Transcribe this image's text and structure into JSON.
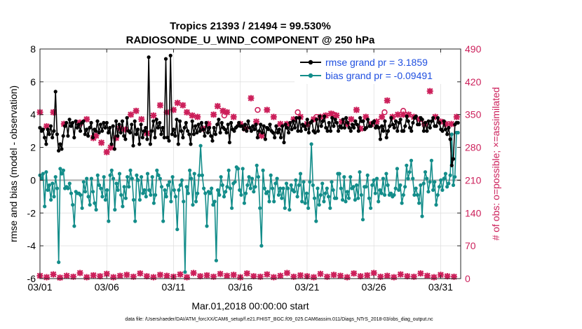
{
  "chart_data": {
    "type": "line",
    "title": "Tropics 21393 / 21494 = 99.530%",
    "subtitle": "RADIOSONDE_U_WIND_COMPONENT @ 250 hPa",
    "xlabel": "Mar.01,2018 00:00:00 start",
    "ylabel_left": "rmse and bias (model - observation)",
    "ylabel_right": "# of obs: o=possible; ×=assimilated",
    "footer": "data file: /Users/raeder/DAI/ATM_forcXX/CAM6_setup/f.e21.FHIST_BGC.f09_025.CAM6assim.011/Diags_NTrS_2018-03/obs_diag_output.nc",
    "xlim": [
      1,
      32.5
    ],
    "ylim_left": [
      -6,
      8
    ],
    "ylim_right": [
      0,
      490
    ],
    "xticks": [
      1,
      6,
      11,
      16,
      21,
      26,
      31
    ],
    "xtick_labels": [
      "03/01",
      "03/06",
      "03/11",
      "03/16",
      "03/21",
      "03/26",
      "03/31"
    ],
    "yticks_left": [
      -6,
      -4,
      -2,
      0,
      2,
      4,
      6,
      8
    ],
    "yticks_right": [
      0,
      70,
      140,
      210,
      280,
      350,
      420,
      490
    ],
    "grid": true,
    "legend_position": "top-right",
    "colors": {
      "rmse": "#000000",
      "bias": "#138d8a",
      "obs": "#cc1f5a",
      "zero_line": "#b0b0b0",
      "legend_text": "#1f4fe0",
      "grid": "#dcdcdc"
    },
    "series": [
      {
        "name": "rmse grand pr = 3.1859",
        "axis": "left",
        "color": "#000000",
        "values": [
          3.2,
          3.0,
          3.1,
          2.6,
          2.2,
          3.1,
          2.8,
          3.3,
          2.6,
          3.0,
          5.4,
          2.8,
          1.8,
          2.2,
          1.9,
          2.7,
          3.3,
          3.5,
          2.7,
          3.7,
          3.3,
          3.5,
          2.6,
          3.6,
          3.2,
          3.4,
          3.0,
          3.5,
          3.6,
          2.8,
          3.1,
          2.7,
          3.2,
          3.5,
          2.6,
          3.1,
          3.0,
          3.6,
          2.9,
          3.4,
          3.0,
          3.5,
          3.2,
          3.5,
          2.9,
          3.2,
          2.2,
          3.3,
          1.9,
          3.6,
          2.7,
          3.4,
          2.9,
          3.6,
          2.7,
          2.5,
          3.8,
          3.0,
          2.9,
          3.4,
          2.1,
          3.6,
          2.8,
          3.1,
          2.2,
          3.4,
          2.6,
          3.0,
          3.2,
          2.5,
          7.5,
          2.2,
          3.0,
          3.6,
          2.6,
          3.7,
          3.2,
          3.5,
          2.8,
          3.2,
          2.6,
          7.4,
          2.6,
          2.4,
          7.6,
          2.8,
          3.1,
          2.7,
          3.7,
          2.2,
          3.6,
          3.0,
          2.6,
          3.2,
          3.5,
          3.0,
          2.8,
          2.2,
          3.6,
          2.8,
          3.3,
          2.9,
          3.4,
          3.0,
          3.5,
          3.1,
          2.7,
          3.5,
          2.9,
          3.2,
          2.7,
          2.4,
          3.2,
          2.8,
          3.4,
          3.7,
          2.9,
          3.5,
          3.2,
          3.1,
          2.9,
          3.4,
          2.3,
          3.5,
          3.1,
          3.0,
          3.2,
          3.3,
          3.5,
          3.3,
          3.3,
          3.1,
          3.4,
          3.0,
          3.6,
          3.2,
          3.0,
          3.3,
          3.1,
          3.4,
          2.6,
          3.0,
          3.4,
          2.9,
          3.3,
          2.5,
          3.2,
          3.1,
          3.4,
          3.0,
          2.9,
          2.6,
          3.3,
          2.9,
          3.1,
          2.6,
          3.3,
          2.3,
          3.4,
          3.2,
          2.9,
          3.5,
          3.1,
          3.6,
          3.2,
          3.8,
          3.0,
          3.8,
          3.0,
          3.4,
          3.3,
          3.1,
          3.7,
          2.9,
          3.5,
          3.6,
          3.0,
          2.9,
          3.7,
          3.0,
          3.9,
          3.3,
          3.6,
          3.9,
          3.2,
          3.0,
          3.5,
          3.0,
          3.8,
          3.3,
          3.7,
          3.5,
          3.0,
          3.3,
          3.2,
          3.7,
          3.2,
          3.8,
          3.5,
          3.2,
          3.0,
          3.4,
          3.2,
          3.6,
          3.4,
          3.0,
          3.8,
          3.6,
          3.6,
          3.1,
          3.2,
          3.7,
          3.3,
          3.3,
          3.5,
          3.6,
          3.2,
          3.3,
          3.2,
          2.5,
          3.3,
          3.0,
          3.6,
          2.6,
          3.0,
          3.3,
          3.8,
          3.4,
          3.2,
          3.6,
          3.0,
          3.5,
          3.7,
          3.0,
          3.0,
          3.3,
          3.9,
          3.6,
          3.2,
          3.0,
          3.5,
          3.8,
          3.9,
          3.4,
          3.4,
          3.8,
          3.7,
          3.0,
          3.5,
          3.0,
          3.6,
          3.2,
          3.6,
          3.8,
          3.3,
          3.3,
          3.8,
          3.5,
          3.1,
          3.0,
          3.6,
          3.1,
          2.8,
          3.2,
          2.5,
          0.9,
          1.3,
          3.4,
          3.5,
          3.5
        ],
        "note": "values resampled uniformly over x range via script"
      },
      {
        "name": "bias grand pr = -0.09491",
        "axis": "left",
        "color": "#138d8a",
        "values": [
          0.3,
          0.1,
          0.4,
          -1.6,
          0.5,
          -0.6,
          -0.3,
          -1.2,
          -0.2,
          -1.0,
          0.2,
          -0.5,
          -5.0,
          0.7,
          0.4,
          0.6,
          -0.5,
          -0.4,
          -0.5,
          -0.2,
          -0.8,
          -1.5,
          -2.8,
          -0.7,
          -0.8,
          -0.8,
          -0.9,
          -1.7,
          -0.1,
          -0.7,
          0.1,
          -1.0,
          -1.5,
          0.1,
          -0.7,
          -1.4,
          -1.8,
          0.3,
          -0.3,
          -0.5,
          -1.0,
          0.2,
          -1.2,
          -0.6,
          -2.5,
          0.3,
          0.6,
          0.1,
          -1.8,
          -0.2,
          -0.6,
          0.4,
          -0.9,
          -1.6,
          -0.4,
          -1.1,
          0.2,
          -0.4,
          0.6,
          0.1,
          -1.2,
          -2.5,
          0.3,
          0.0,
          -1.2,
          0.2,
          -0.8,
          -0.6,
          -1.0,
          0.4,
          -0.6,
          -0.9,
          0.2,
          -1.4,
          -0.9,
          0.6,
          0.3,
          0.1,
          -0.4,
          -2.5,
          -0.6,
          -1.0,
          -0.3,
          -0.1,
          -1.3,
          0.2,
          -0.6,
          -1.0,
          -3.0,
          -0.6,
          -0.3,
          0.0,
          -1.3,
          -5.6,
          -0.4,
          -0.8,
          0.6,
          0.1,
          -1.5,
          0.4,
          -1.3,
          -0.8,
          0.3,
          2.1,
          0.3,
          -0.5,
          -0.8,
          -2.8,
          -0.7,
          -0.8,
          -0.5,
          -1.5,
          -1.3,
          -4.9,
          -0.6,
          -0.9,
          0.2,
          -0.3,
          -1.0,
          -0.7,
          -0.4,
          0.6,
          -0.5,
          -1.7,
          -0.2,
          -0.1,
          0.8,
          0.7,
          -0.6,
          -0.9,
          0.7,
          -1.4,
          -0.8,
          -0.3,
          0.2,
          -0.5,
          0.1,
          -0.7,
          -0.4,
          0.9,
          0.2,
          -1.7,
          -4.0,
          0.6,
          -0.5,
          -0.8,
          -0.7,
          -1.3,
          0.3,
          -0.5,
          -1.3,
          -0.2,
          0.1,
          -0.9,
          -0.5,
          -1.1,
          -0.5,
          -1.7,
          -0.2,
          -0.5,
          -1.8,
          -0.3,
          -0.6,
          -0.7,
          0.0,
          -1.0,
          -0.3,
          0.4,
          -1.3,
          -0.1,
          -1.4,
          -0.8,
          -1.7,
          -0.1,
          2.2,
          -0.3,
          -1.1,
          -2.5,
          -0.5,
          -1.5,
          -0.9,
          -0.2,
          -1.3,
          -0.8,
          -0.5,
          -1.0,
          -1.7,
          -0.1,
          -0.6,
          -1.1,
          -1.1,
          0.4,
          0.4,
          -0.5,
          -1.2,
          0.2,
          -1.3,
          -0.7,
          -1.1,
          0.2,
          -0.5,
          -0.4,
          -1.2,
          -0.3,
          -1.1,
          0.5,
          -0.9,
          -2.4,
          -0.4,
          -0.4,
          0.3,
          -1.1,
          -1.7,
          -0.3,
          0.0,
          -0.8,
          0.1,
          -1.3,
          -0.6,
          -0.8,
          0.1,
          -0.9,
          0.4,
          -0.3,
          -0.9,
          -0.8,
          -1.0,
          -0.9,
          -0.5,
          0.7,
          -0.6,
          -0.3,
          -1.4,
          -0.9,
          -0.4,
          0.9,
          0.1,
          0.5,
          1.2,
          0.1,
          -0.9,
          -0.5,
          -0.9,
          -1.4,
          -0.3,
          -2.2,
          -0.2,
          0.5,
          0.1,
          -0.7,
          -0.1,
          1.2,
          -0.6,
          -0.1,
          -1.5,
          -0.9,
          -0.4,
          0.0,
          -0.6,
          0.1,
          0.4,
          -0.4,
          -0.2,
          0.3,
          2.8,
          -0.3,
          0.2,
          2.9,
          2.9
        ],
        "note": "values resampled uniformly over x range via script"
      },
      {
        "name": "# obs assimilated (upper cluster)",
        "axis": "right",
        "color": "#cc1f5a",
        "marker": "x",
        "x": [
          1.0,
          1.5,
          2.0,
          2.8,
          4.0,
          4.5,
          5.0,
          5.2,
          5.6,
          6.0,
          6.3,
          6.7,
          7.0,
          7.4,
          7.8,
          8.2,
          8.6,
          9.0,
          9.5,
          10.0,
          10.5,
          11.0,
          11.3,
          11.7,
          12.0,
          12.4,
          12.8,
          13.2,
          13.6,
          14.0,
          14.3,
          14.7,
          15.0,
          15.5,
          16.0,
          16.4,
          16.8,
          17.2,
          17.6,
          18.0,
          18.5,
          19.0,
          19.5,
          20.0,
          20.5,
          21.0,
          21.5,
          22.0,
          22.4,
          22.8,
          23.2,
          23.6,
          24.0,
          24.3,
          24.7,
          25.0,
          25.4,
          25.8,
          26.2,
          26.6,
          27.0,
          27.4,
          27.8,
          28.2,
          28.6,
          29.0,
          29.4,
          29.8,
          30.2,
          30.6,
          31.0,
          31.4,
          31.8,
          32.2
        ],
        "values": [
          355,
          325,
          355,
          330,
          333,
          340,
          300,
          305,
          290,
          270,
          280,
          300,
          320,
          318,
          350,
          358,
          340,
          310,
          348,
          370,
          355,
          360,
          375,
          370,
          355,
          348,
          345,
          320,
          330,
          350,
          368,
          358,
          355,
          345,
          330,
          320,
          385,
          335,
          305,
          360,
          345,
          330,
          330,
          340,
          345,
          330,
          340,
          345,
          348,
          352,
          348,
          335,
          330,
          340,
          360,
          320,
          345,
          330,
          335,
          345,
          380,
          345,
          350,
          350,
          350,
          345,
          340,
          330,
          400,
          345,
          335,
          330,
          330,
          345
        ]
      },
      {
        "name": "# obs assimilated (lower cluster)",
        "axis": "right",
        "color": "#cc1f5a",
        "marker": "x",
        "x": [
          1.0,
          1.5,
          2.0,
          2.5,
          3.0,
          3.5,
          4.0,
          4.5,
          5.0,
          5.5,
          6.0,
          6.5,
          7.0,
          7.5,
          8.0,
          8.5,
          9.0,
          9.5,
          10.0,
          10.5,
          11.0,
          11.5,
          12.0,
          12.5,
          13.0,
          13.5,
          14.0,
          14.5,
          15.0,
          15.5,
          16.0,
          16.5,
          17.0,
          17.5,
          18.0,
          18.5,
          19.0,
          19.5,
          20.0,
          20.5,
          21.0,
          21.5,
          22.0,
          22.5,
          23.0,
          23.5,
          24.0,
          24.5,
          25.0,
          25.5,
          26.0,
          26.5,
          27.0,
          27.5,
          28.0,
          28.5,
          29.0,
          29.5,
          30.0,
          30.5,
          31.0,
          31.5,
          32.0
        ],
        "values": [
          6,
          3,
          9,
          2,
          6,
          4,
          12,
          3,
          7,
          5,
          10,
          3,
          6,
          8,
          4,
          11,
          5,
          3,
          8,
          6,
          4,
          9,
          3,
          12,
          5,
          7,
          4,
          10,
          6,
          8,
          3,
          11,
          5,
          4,
          9,
          3,
          6,
          12,
          4,
          7,
          5,
          3,
          10,
          4,
          8,
          6,
          3,
          11,
          5,
          7,
          12,
          4,
          6,
          3,
          9,
          5,
          4,
          11,
          6,
          3,
          8,
          5,
          4
        ]
      },
      {
        "name": "# obs possible",
        "axis": "right",
        "color": "#cc1f5a",
        "marker": "o",
        "x": [
          4.0,
          14.8,
          17.3,
          20.3,
          21.7,
          23.0,
          26.8,
          28.2
        ],
        "values": [
          330,
          348,
          360,
          355,
          345,
          350,
          355,
          358
        ]
      }
    ]
  },
  "legend": [
    {
      "label": "rmse grand pr = 3.1859",
      "color": "#000000"
    },
    {
      "label": "bias grand pr = -0.09491",
      "color": "#138d8a"
    }
  ]
}
